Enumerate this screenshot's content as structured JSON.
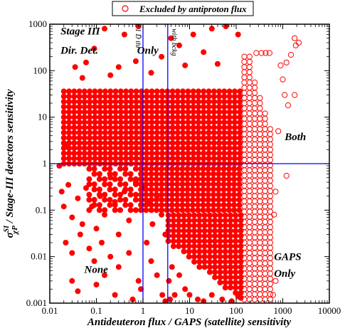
{
  "chart_data": {
    "type": "scatter",
    "title": "",
    "xlabel": "Antideuteron flux / GAPS (satellite) sensitivity",
    "ylabel": "σ^SI_χP / Stage-III detectors sensitivity",
    "ylabel_parts": {
      "sigma": "σ",
      "sup": "SI",
      "sub": "χP",
      "rest": " / Stage-III detectors sensitivity"
    },
    "xscale": "log",
    "yscale": "log",
    "xlim": [
      0.01,
      10000
    ],
    "ylim": [
      0.001,
      1000
    ],
    "grid": false,
    "x_ticks": [
      "0.01",
      "0.1",
      "1",
      "10",
      "100",
      "1000",
      "10000"
    ],
    "y_ticks": [
      "0.001",
      "0.01",
      "0.1",
      "1",
      "10",
      "100",
      "1000"
    ],
    "legend": {
      "position": "top-center",
      "entries": [
        {
          "label": "Excluded by antiproton flux",
          "marker": "open-circle"
        }
      ]
    },
    "reference_lines": {
      "vertical": [
        {
          "x": 1,
          "label": "1 D̄ thr"
        },
        {
          "x": 3.4,
          "label": "with bckg"
        }
      ],
      "horizontal": [
        {
          "y": 1
        }
      ]
    },
    "region_labels": [
      {
        "text": "Stage III",
        "x": 0.017,
        "y": 600
      },
      {
        "text": "Dir. Det.",
        "x": 0.017,
        "y": 230
      },
      {
        "text": "Only",
        "x": 0.75,
        "y": 230
      },
      {
        "text": "Both",
        "x": 1100,
        "y": 3.2
      },
      {
        "text": "None",
        "x": 0.055,
        "y": 0.0045
      },
      {
        "text": "GAPS",
        "x": 650,
        "y": 0.0085
      },
      {
        "text": "Only",
        "x": 650,
        "y": 0.0037
      }
    ],
    "series": [
      {
        "name": "",
        "marker": "filled-circle",
        "color": "#ff0000",
        "dense_region": {
          "x_range": [
            0.02,
            150
          ],
          "y_range_top": 40
        },
        "points": [
          [
            0.021,
            2.5
          ],
          [
            0.035,
            120
          ],
          [
            0.06,
            150
          ],
          [
            0.09,
            300
          ],
          [
            0.15,
            800
          ],
          [
            0.8,
            900
          ],
          [
            0.4,
            600
          ],
          [
            0.3,
            120
          ],
          [
            0.7,
            160
          ],
          [
            2.5,
            200
          ],
          [
            4.0,
            500
          ],
          [
            6.0,
            350
          ],
          [
            12,
            600
          ],
          [
            20,
            250
          ],
          [
            30,
            800
          ],
          [
            60,
            900
          ],
          [
            110,
            600
          ],
          [
            8.0,
            130
          ],
          [
            40,
            140
          ],
          [
            0.05,
            70
          ],
          [
            0.2,
            80
          ],
          [
            1.5,
            90
          ],
          [
            0.016,
            0.9
          ],
          [
            0.018,
            0.25
          ],
          [
            0.02,
            0.12
          ],
          [
            0.025,
            0.35
          ],
          [
            0.03,
            0.07
          ],
          [
            0.04,
            0.18
          ],
          [
            0.05,
            0.05
          ],
          [
            0.06,
            0.3
          ],
          [
            0.08,
            0.12
          ],
          [
            0.1,
            0.04
          ],
          [
            0.12,
            0.2
          ],
          [
            0.15,
            0.08
          ],
          [
            0.2,
            0.5
          ],
          [
            0.25,
            0.15
          ],
          [
            0.3,
            0.03
          ],
          [
            0.4,
            0.25
          ],
          [
            0.5,
            0.06
          ],
          [
            0.7,
            0.4
          ],
          [
            0.022,
            0.02
          ],
          [
            0.03,
            0.012
          ],
          [
            0.045,
            0.03
          ],
          [
            0.07,
            0.015
          ],
          [
            0.09,
            0.008
          ],
          [
            0.13,
            0.02
          ],
          [
            0.2,
            0.01
          ],
          [
            0.3,
            0.006
          ],
          [
            0.5,
            0.012
          ],
          [
            0.8,
            0.003
          ],
          [
            0.03,
            0.003
          ],
          [
            0.04,
            0.0018
          ],
          [
            0.1,
            0.0025
          ],
          [
            0.15,
            0.004
          ],
          [
            0.25,
            0.0015
          ],
          [
            0.6,
            0.0012
          ],
          [
            0.9,
            0.002
          ],
          [
            0.7,
            0.0009
          ],
          [
            1.1,
            0.3
          ],
          [
            1.3,
            0.15
          ],
          [
            1.6,
            0.05
          ],
          [
            2.0,
            0.2
          ],
          [
            2.5,
            0.08
          ],
          [
            3.0,
            0.03
          ],
          [
            1.2,
            0.02
          ],
          [
            1.5,
            0.008
          ],
          [
            2.0,
            0.004
          ],
          [
            2.6,
            0.0015
          ],
          [
            3.0,
            0.0011
          ],
          [
            3.6,
            0.003
          ],
          [
            3.8,
            0.0012
          ],
          [
            4.2,
            0.006
          ],
          [
            4.8,
            0.0015
          ],
          [
            6,
            0.004
          ],
          [
            8,
            0.002
          ],
          [
            10,
            0.0015
          ],
          [
            15,
            0.0012
          ],
          [
            20,
            0.0011
          ],
          [
            30,
            0.0015
          ],
          [
            50,
            0.0012
          ],
          [
            80,
            0.0011
          ],
          [
            110,
            0.0014
          ]
        ]
      },
      {
        "name": "Excluded by antiproton flux",
        "marker": "open-circle",
        "color": "#ff0000",
        "open_region": {
          "x_range": [
            150,
            650
          ],
          "y_range": [
            0.0012,
            250
          ]
        },
        "points": [
          [
            270,
            240
          ],
          [
            350,
            240
          ],
          [
            430,
            240
          ],
          [
            520,
            240
          ],
          [
            1800,
            500
          ],
          [
            2200,
            400
          ],
          [
            1900,
            350
          ],
          [
            1500,
            220
          ],
          [
            1200,
            150
          ],
          [
            900,
            130
          ],
          [
            1000,
            65
          ],
          [
            1100,
            30
          ],
          [
            1300,
            18
          ],
          [
            1800,
            30
          ],
          [
            1200,
            0.55
          ],
          [
            800,
            5
          ],
          [
            700,
            0.25
          ],
          [
            650,
            0.08
          ],
          [
            700,
            0.003
          ],
          [
            620,
            0.0015
          ]
        ]
      }
    ]
  }
}
